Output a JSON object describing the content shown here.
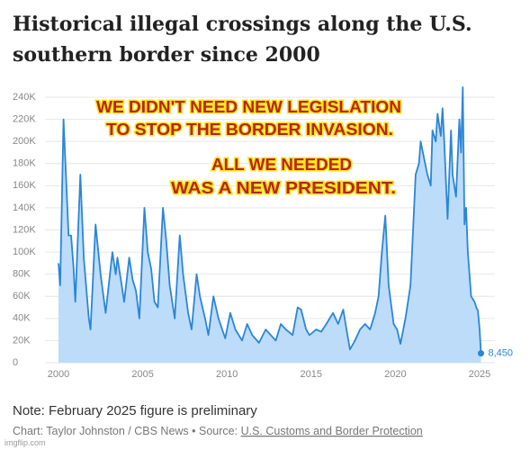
{
  "title_lines": [
    "Historical illegal crossings along the U.S.",
    "southern border since 2000"
  ],
  "overlay_lines": [
    "WE DIDN'T NEED NEW LEGISLATION",
    "TO STOP THE BORDER INVASION.",
    "ALL WE NEEDED",
    "WAS A NEW PRESIDENT."
  ],
  "note": "Note: February 2025 figure is preliminary",
  "source_prefix": "Chart: Taylor Johnston / CBS News • Source: ",
  "source_link": "U.S. Customs and Border Protection",
  "watermark": "imgflip.com",
  "chart_data": {
    "type": "area",
    "x": [
      2000.0,
      2000.1,
      2000.3,
      2000.6,
      2000.75,
      2000.9,
      2001.0,
      2001.3,
      2001.5,
      2001.8,
      2001.9,
      2002.2,
      2002.5,
      2002.8,
      2003.2,
      2003.4,
      2003.5,
      2003.7,
      2003.9,
      2004.2,
      2004.4,
      2004.6,
      2004.8,
      2005.1,
      2005.3,
      2005.5,
      2005.7,
      2005.9,
      2006.2,
      2006.4,
      2006.6,
      2006.9,
      2007.2,
      2007.4,
      2007.7,
      2007.9,
      2008.2,
      2008.4,
      2008.7,
      2008.9,
      2009.2,
      2009.5,
      2009.9,
      2010.2,
      2010.5,
      2010.9,
      2011.2,
      2011.5,
      2011.9,
      2012.3,
      2012.6,
      2012.9,
      2013.2,
      2013.5,
      2013.9,
      2014.2,
      2014.4,
      2014.7,
      2014.9,
      2015.3,
      2015.6,
      2015.9,
      2016.3,
      2016.6,
      2016.9,
      2017.1,
      2017.3,
      2017.6,
      2017.9,
      2018.2,
      2018.5,
      2018.8,
      2019.0,
      2019.2,
      2019.4,
      2019.6,
      2019.9,
      2020.1,
      2020.3,
      2020.6,
      2020.9,
      2021.2,
      2021.4,
      2021.5,
      2021.7,
      2021.9,
      2022.1,
      2022.2,
      2022.4,
      2022.5,
      2022.7,
      2022.8,
      2022.9,
      2023.1,
      2023.3,
      2023.4,
      2023.6,
      2023.8,
      2023.9,
      2024.0,
      2024.1,
      2024.2,
      2024.3,
      2024.5,
      2024.7,
      2024.8,
      2024.9,
      2025.0,
      2025.08
    ],
    "series": [
      {
        "color": "#2b86d6",
        "fill": "#bcdcfa",
        "values": [
          90000,
          70000,
          220000,
          115000,
          115000,
          85000,
          55000,
          170000,
          95000,
          40000,
          30000,
          125000,
          80000,
          45000,
          100000,
          80000,
          95000,
          75000,
          55000,
          95000,
          75000,
          65000,
          40000,
          140000,
          100000,
          85000,
          55000,
          50000,
          140000,
          110000,
          70000,
          40000,
          115000,
          80000,
          45000,
          30000,
          80000,
          60000,
          40000,
          25000,
          60000,
          40000,
          22000,
          45000,
          30000,
          20000,
          35000,
          25000,
          18000,
          30000,
          25000,
          20000,
          35000,
          30000,
          25000,
          50000,
          48000,
          30000,
          25000,
          30000,
          28000,
          35000,
          45000,
          35000,
          48000,
          30000,
          12000,
          20000,
          30000,
          35000,
          30000,
          45000,
          60000,
          100000,
          133000,
          70000,
          35000,
          30000,
          17000,
          40000,
          70000,
          170000,
          180000,
          200000,
          185000,
          170000,
          160000,
          210000,
          200000,
          225000,
          205000,
          230000,
          200000,
          130000,
          210000,
          170000,
          150000,
          220000,
          190000,
          249000,
          125000,
          140000,
          100000,
          60000,
          55000,
          50000,
          47000,
          30000,
          8450
        ],
        "value_labels": [
          null,
          null,
          null,
          null,
          null,
          null,
          null,
          null,
          null,
          null,
          null,
          null,
          null,
          null,
          null,
          null,
          null,
          null,
          null,
          null,
          null,
          null,
          null,
          null,
          null,
          null,
          null,
          null,
          null,
          null,
          null,
          null,
          null,
          null,
          null,
          null,
          null,
          null,
          null,
          null,
          null,
          null,
          null,
          null,
          null,
          null,
          null,
          null,
          null,
          null,
          null,
          null,
          null,
          null,
          null,
          null,
          null,
          null,
          null,
          null,
          null,
          null,
          null,
          null,
          null,
          null,
          null,
          null,
          null,
          null,
          null,
          null,
          null,
          null,
          null,
          null,
          null,
          null,
          null,
          null,
          null,
          null,
          null,
          null,
          null,
          null,
          null,
          null,
          null,
          null,
          null,
          null,
          null,
          null,
          null,
          null,
          null,
          null,
          null,
          null,
          null,
          null,
          null,
          null,
          null,
          null,
          null,
          null,
          "8,450"
        ]
      }
    ],
    "xlim": [
      2000,
      2025
    ],
    "xticks": [
      2000,
      2005,
      2010,
      2015,
      2020,
      2025
    ],
    "ylim": [
      0,
      240000
    ],
    "yticks": [
      0,
      {
        "value": 20000,
        "label": "20K"
      },
      {
        "value": 40000,
        "label": "40K"
      },
      {
        "value": 60000,
        "label": "60K"
      },
      {
        "value": 80000,
        "label": "80K"
      },
      {
        "value": 100000,
        "label": "100K"
      },
      {
        "value": 120000,
        "label": "120K"
      },
      {
        "value": 140000,
        "label": "140K"
      },
      {
        "value": 160000,
        "label": "160K"
      },
      {
        "value": 180000,
        "label": "180K"
      },
      {
        "value": 200000,
        "label": "200K"
      },
      {
        "value": 220000,
        "label": "220K"
      },
      {
        "value": 240000,
        "label": "240K"
      }
    ],
    "grid": true
  }
}
